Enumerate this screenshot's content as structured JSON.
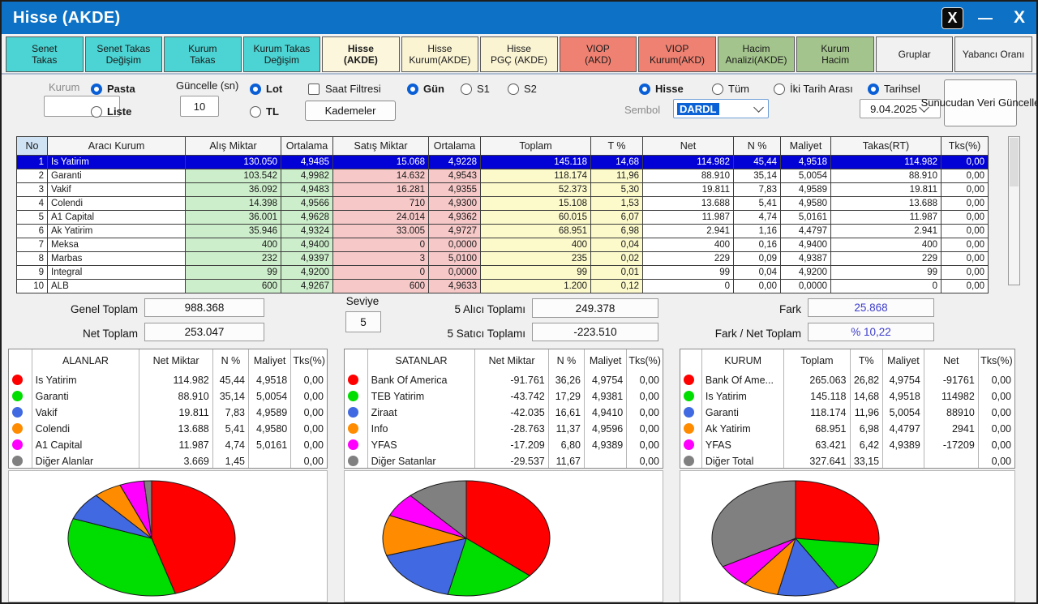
{
  "window": {
    "title": "Hisse (AKDE)"
  },
  "titlebar_icons": {
    "x_logo": "X",
    "minimize": "—",
    "close": "X"
  },
  "tabs": [
    {
      "label": "Senet\nTakas",
      "type": "cyan",
      "active": false
    },
    {
      "label": "Senet Takas\nDeğişim",
      "type": "cyan",
      "active": false
    },
    {
      "label": "Kurum\nTakas",
      "type": "cyan",
      "active": false
    },
    {
      "label": "Kurum Takas\nDeğişim",
      "type": "cyan",
      "active": false
    },
    {
      "label": "Hisse\n(AKDE)",
      "type": "cream",
      "active": true
    },
    {
      "label": "Hisse\nKurum(AKDE)",
      "type": "cream",
      "active": false
    },
    {
      "label": "Hisse\nPGÇ (AKDE)",
      "type": "cream",
      "active": false
    },
    {
      "label": "VIOP\n(AKD)",
      "type": "salmon",
      "active": false
    },
    {
      "label": "VIOP\nKurum(AKD)",
      "type": "salmon",
      "active": false
    },
    {
      "label": "Hacim\nAnalizi(AKDE)",
      "type": "green",
      "active": false
    },
    {
      "label": "Kurum\nHacim",
      "type": "green",
      "active": false
    },
    {
      "label": "Gruplar",
      "type": "plain",
      "active": false
    },
    {
      "label": "Yabancı Oranı",
      "type": "plain",
      "active": false
    }
  ],
  "controls": {
    "kurum_label": "Kurum",
    "kurum_value": "",
    "pasta_label": "Pasta",
    "liste_label": "Liste",
    "guncelle_label": "Güncelle (sn)",
    "guncelle_value": "10",
    "lot_label": "Lot",
    "tl_label": "TL",
    "saat_filtresi_label": "Saat Filtresi",
    "kademeler_label": "Kademeler",
    "gun_label": "Gün",
    "s1_label": "S1",
    "s2_label": "S2",
    "hisse_label": "Hisse",
    "tum_label": "Tüm",
    "iki_tarih_label": "İki Tarih Arası",
    "tarihsel_label": "Tarihsel",
    "sembol_label": "Sembol",
    "sembol_value": "DARDL",
    "date_value": "9.04.2025",
    "sunucudan_label": "Sunucudan Veri Güncelle"
  },
  "table": {
    "columns": [
      "No",
      "Aracı Kurum",
      "Alış Miktar",
      "Ortalama",
      "Satış Miktar",
      "Ortalama",
      "Toplam",
      "T %",
      "Net",
      "N %",
      "Maliyet",
      "Takas(RT)",
      "Tks(%)"
    ],
    "selected_row": 0,
    "rows": [
      [
        "1",
        "Is Yatirim",
        "130.050",
        "4,9485",
        "15.068",
        "4,9228",
        "145.118",
        "14,68",
        "114.982",
        "45,44",
        "4,9518",
        "114.982",
        "0,00"
      ],
      [
        "2",
        "Garanti",
        "103.542",
        "4,9982",
        "14.632",
        "4,9543",
        "118.174",
        "11,96",
        "88.910",
        "35,14",
        "5,0054",
        "88.910",
        "0,00"
      ],
      [
        "3",
        "Vakif",
        "36.092",
        "4,9483",
        "16.281",
        "4,9355",
        "52.373",
        "5,30",
        "19.811",
        "7,83",
        "4,9589",
        "19.811",
        "0,00"
      ],
      [
        "4",
        "Colendi",
        "14.398",
        "4,9566",
        "710",
        "4,9300",
        "15.108",
        "1,53",
        "13.688",
        "5,41",
        "4,9580",
        "13.688",
        "0,00"
      ],
      [
        "5",
        "A1 Capital",
        "36.001",
        "4,9628",
        "24.014",
        "4,9362",
        "60.015",
        "6,07",
        "11.987",
        "4,74",
        "5,0161",
        "11.987",
        "0,00"
      ],
      [
        "6",
        "Ak Yatirim",
        "35.946",
        "4,9324",
        "33.005",
        "4,9727",
        "68.951",
        "6,98",
        "2.941",
        "1,16",
        "4,4797",
        "2.941",
        "0,00"
      ],
      [
        "7",
        "Meksa",
        "400",
        "4,9400",
        "0",
        "0,0000",
        "400",
        "0,04",
        "400",
        "0,16",
        "4,9400",
        "400",
        "0,00"
      ],
      [
        "8",
        "Marbas",
        "232",
        "4,9397",
        "3",
        "5,0100",
        "235",
        "0,02",
        "229",
        "0,09",
        "4,9387",
        "229",
        "0,00"
      ],
      [
        "9",
        "Integral",
        "99",
        "4,9200",
        "0",
        "0,0000",
        "99",
        "0,01",
        "99",
        "0,04",
        "4,9200",
        "99",
        "0,00"
      ],
      [
        "10",
        "ALB",
        "600",
        "4,9267",
        "600",
        "4,9633",
        "1.200",
        "0,12",
        "0",
        "0,00",
        "0,0000",
        "0",
        "0,00"
      ]
    ]
  },
  "totals": {
    "genel_toplam_label": "Genel Toplam",
    "genel_toplam_value": "988.368",
    "net_toplam_label": "Net Toplam",
    "net_toplam_value": "253.047",
    "seviye_label": "Seviye",
    "seviye_value": "5",
    "alici_label": "5  Alıcı Toplamı",
    "alici_value": "249.378",
    "satici_label": "5  Satıcı Toplamı",
    "satici_value": "-223.510",
    "fark_label": "Fark",
    "fark_value": "25.868",
    "fark_net_label": "Fark / Net Toplam",
    "fark_net_value": "% 10,22"
  },
  "panels": [
    {
      "columns": [
        "",
        "ALANLAR",
        "Net Miktar",
        "N %",
        "Maliyet",
        "Tks(%)"
      ],
      "rows": [
        {
          "color": "#ff0000",
          "cells": [
            "Is Yatirim",
            "114.982",
            "45,44",
            "4,9518",
            "0,00"
          ]
        },
        {
          "color": "#00dd00",
          "cells": [
            "Garanti",
            "88.910",
            "35,14",
            "5,0054",
            "0,00"
          ]
        },
        {
          "color": "#4169e1",
          "cells": [
            "Vakif",
            "19.811",
            "7,83",
            "4,9589",
            "0,00"
          ]
        },
        {
          "color": "#ff8c00",
          "cells": [
            "Colendi",
            "13.688",
            "5,41",
            "4,9580",
            "0,00"
          ]
        },
        {
          "color": "#ff00ff",
          "cells": [
            "A1 Capital",
            "11.987",
            "4,74",
            "5,0161",
            "0,00"
          ]
        },
        {
          "color": "#808080",
          "cells": [
            "Diğer Alanlar",
            "3.669",
            "1,45",
            "",
            "0,00"
          ]
        }
      ]
    },
    {
      "columns": [
        "",
        "SATANLAR",
        "Net Miktar",
        "N %",
        "Maliyet",
        "Tks(%)"
      ],
      "rows": [
        {
          "color": "#ff0000",
          "cells": [
            "Bank Of America",
            "-91.761",
            "36,26",
            "4,9754",
            "0,00"
          ]
        },
        {
          "color": "#00dd00",
          "cells": [
            "TEB Yatirim",
            "-43.742",
            "17,29",
            "4,9381",
            "0,00"
          ]
        },
        {
          "color": "#4169e1",
          "cells": [
            "Ziraat",
            "-42.035",
            "16,61",
            "4,9410",
            "0,00"
          ]
        },
        {
          "color": "#ff8c00",
          "cells": [
            "Info",
            "-28.763",
            "11,37",
            "4,9596",
            "0,00"
          ]
        },
        {
          "color": "#ff00ff",
          "cells": [
            "YFAS",
            "-17.209",
            "6,80",
            "4,9389",
            "0,00"
          ]
        },
        {
          "color": "#808080",
          "cells": [
            "Diğer Satanlar",
            "-29.537",
            "11,67",
            "",
            "0,00"
          ]
        }
      ]
    },
    {
      "columns": [
        "",
        "KURUM",
        "Toplam",
        "T%",
        "Maliyet",
        "Net",
        "Tks(%)"
      ],
      "rows": [
        {
          "color": "#ff0000",
          "cells": [
            "Bank Of Ame...",
            "265.063",
            "26,82",
            "4,9754",
            "-91761",
            "0,00"
          ]
        },
        {
          "color": "#00dd00",
          "cells": [
            "Is Yatirim",
            "145.118",
            "14,68",
            "4,9518",
            "114982",
            "0,00"
          ]
        },
        {
          "color": "#4169e1",
          "cells": [
            "Garanti",
            "118.174",
            "11,96",
            "5,0054",
            "88910",
            "0,00"
          ]
        },
        {
          "color": "#ff8c00",
          "cells": [
            "Ak Yatirim",
            "68.951",
            "6,98",
            "4,4797",
            "2941",
            "0,00"
          ]
        },
        {
          "color": "#ff00ff",
          "cells": [
            "YFAS",
            "63.421",
            "6,42",
            "4,9389",
            "-17209",
            "0,00"
          ]
        },
        {
          "color": "#808080",
          "cells": [
            "Diğer Total",
            "327.641",
            "33,15",
            "",
            "",
            "0,00"
          ]
        }
      ]
    }
  ],
  "chart_data": [
    {
      "type": "pie",
      "title": "ALANLAR",
      "labels": [
        "Is Yatirim",
        "Garanti",
        "Vakif",
        "Colendi",
        "A1 Capital",
        "Diğer Alanlar"
      ],
      "values": [
        45.44,
        35.14,
        7.83,
        5.41,
        4.74,
        1.45
      ],
      "colors": [
        "#ff0000",
        "#00dd00",
        "#4169e1",
        "#ff8c00",
        "#ff00ff",
        "#808080"
      ],
      "start_angle_deg": -90,
      "direction": "clockwise",
      "legend_position": "table-above"
    },
    {
      "type": "pie",
      "title": "SATANLAR",
      "labels": [
        "Bank Of America",
        "TEB Yatirim",
        "Ziraat",
        "Info",
        "YFAS",
        "Diğer Satanlar"
      ],
      "values": [
        36.26,
        17.29,
        16.61,
        11.37,
        6.8,
        11.67
      ],
      "colors": [
        "#ff0000",
        "#00dd00",
        "#4169e1",
        "#ff8c00",
        "#ff00ff",
        "#808080"
      ],
      "start_angle_deg": -90,
      "direction": "clockwise",
      "legend_position": "table-above"
    },
    {
      "type": "pie",
      "title": "KURUM",
      "labels": [
        "Bank Of Ame...",
        "Is Yatirim",
        "Garanti",
        "Ak Yatirim",
        "YFAS",
        "Diğer Total"
      ],
      "values": [
        26.82,
        14.68,
        11.96,
        6.98,
        6.42,
        33.15
      ],
      "colors": [
        "#ff0000",
        "#00dd00",
        "#4169e1",
        "#ff8c00",
        "#ff00ff",
        "#808080"
      ],
      "start_angle_deg": -90,
      "direction": "clockwise",
      "legend_position": "table-above"
    }
  ]
}
